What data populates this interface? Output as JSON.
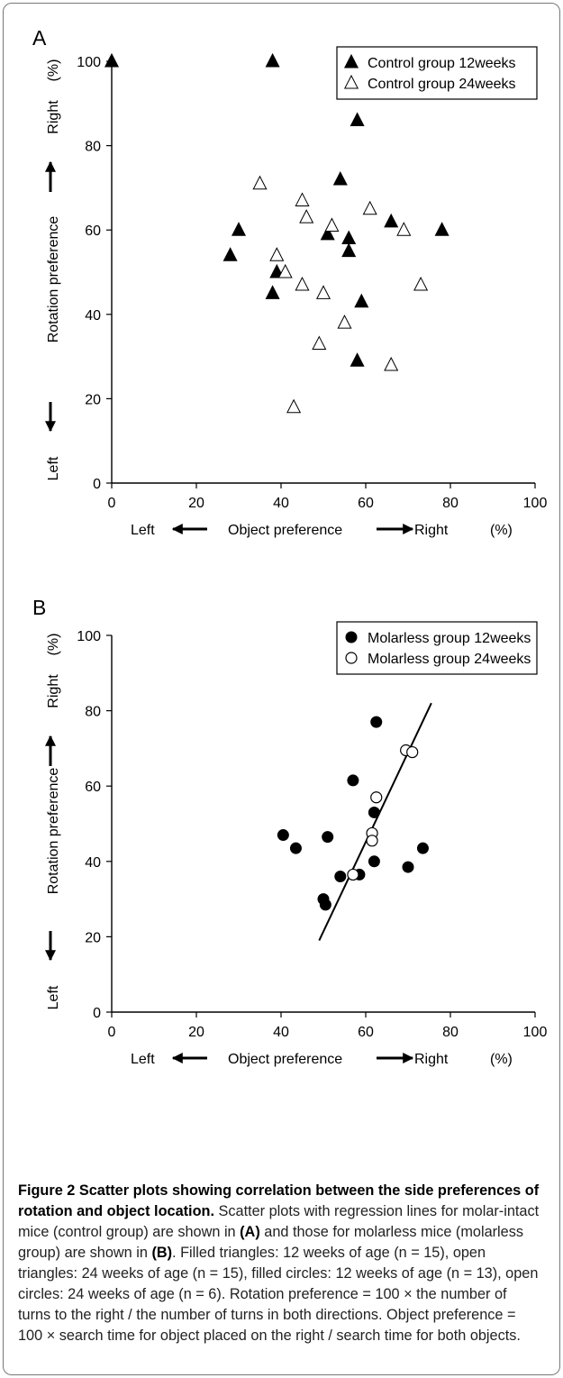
{
  "chart_data": [
    {
      "panel": "A",
      "type": "scatter",
      "xlim": [
        0,
        100
      ],
      "ylim": [
        0,
        100
      ],
      "xticks": [
        0,
        20,
        40,
        60,
        80,
        100
      ],
      "yticks": [
        0,
        20,
        40,
        60,
        80,
        100
      ],
      "xlabel": "Object preference",
      "x_left": "Left",
      "x_right": "Right",
      "x_unit": "(%)",
      "ylabel": "Rotation preference",
      "y_low": "Left",
      "y_high": "Right",
      "y_unit": "(%)",
      "legend_position": "top-right",
      "series": [
        {
          "name": "Control group 12weeks",
          "marker": "filled-triangle",
          "points": [
            [
              0,
              100
            ],
            [
              38,
              100
            ],
            [
              58,
              86
            ],
            [
              54,
              72
            ],
            [
              30,
              60
            ],
            [
              78,
              60
            ],
            [
              66,
              62
            ],
            [
              51,
              59
            ],
            [
              56,
              58
            ],
            [
              56,
              55
            ],
            [
              28,
              54
            ],
            [
              39,
              50
            ],
            [
              38,
              45
            ],
            [
              59,
              43
            ],
            [
              58,
              29
            ]
          ]
        },
        {
          "name": "Control group 24weeks",
          "marker": "open-triangle",
          "points": [
            [
              35,
              71
            ],
            [
              45,
              67
            ],
            [
              46,
              63
            ],
            [
              61,
              65
            ],
            [
              52,
              61
            ],
            [
              69,
              60
            ],
            [
              39,
              54
            ],
            [
              41,
              50
            ],
            [
              45,
              47
            ],
            [
              73,
              47
            ],
            [
              50,
              45
            ],
            [
              55,
              38
            ],
            [
              49,
              33
            ],
            [
              66,
              28
            ],
            [
              43,
              18
            ]
          ]
        }
      ]
    },
    {
      "panel": "B",
      "type": "scatter",
      "xlim": [
        0,
        100
      ],
      "ylim": [
        0,
        100
      ],
      "xticks": [
        0,
        20,
        40,
        60,
        80,
        100
      ],
      "yticks": [
        0,
        20,
        40,
        60,
        80,
        100
      ],
      "xlabel": "Object preference",
      "x_left": "Left",
      "x_right": "Right",
      "x_unit": "(%)",
      "ylabel": "Rotation preference",
      "y_low": "Left",
      "y_high": "Right",
      "y_unit": "(%)",
      "legend_position": "top-right",
      "regression_line": [
        [
          49,
          19
        ],
        [
          75.5,
          82
        ]
      ],
      "series": [
        {
          "name": "Molarless group 12weeks",
          "marker": "filled-circle",
          "points": [
            [
              62.5,
              77
            ],
            [
              57,
              61.5
            ],
            [
              62,
              53
            ],
            [
              40.5,
              47
            ],
            [
              51,
              46.5
            ],
            [
              43.5,
              43.5
            ],
            [
              73.5,
              43.5
            ],
            [
              62,
              40
            ],
            [
              70,
              38.5
            ],
            [
              54,
              36
            ],
            [
              58.5,
              36.5
            ],
            [
              50,
              30
            ],
            [
              50.5,
              28.5
            ]
          ]
        },
        {
          "name": "Molarless group 24weeks",
          "marker": "open-circle",
          "points": [
            [
              69.5,
              69.5
            ],
            [
              71,
              69
            ],
            [
              62.5,
              57
            ],
            [
              61.5,
              47.5
            ],
            [
              61.5,
              45.5
            ],
            [
              57,
              36.5
            ]
          ]
        }
      ]
    }
  ],
  "caption": {
    "title": "Figure 2 Scatter plots showing correlation between the side preferences of rotation and object location.",
    "text_1": " Scatter plots with regression lines for molar-intact mice (control group) are shown in ",
    "ref_a": "(A)",
    "text_2": " and those for molarless mice (molarless group) are shown in ",
    "ref_b": "(B)",
    "text_3": ". Filled triangles: 12 weeks of age (n = 15), open triangles: 24 weeks of age (n = 15), filled circles: 12 weeks of age (n = 13), open circles: 24 weeks of age (n = 6). Rotation preference = 100 × the number of turns to the right / the number of turns in both directions. Object preference = 100 × search time for object placed on the right / search time for both objects."
  }
}
